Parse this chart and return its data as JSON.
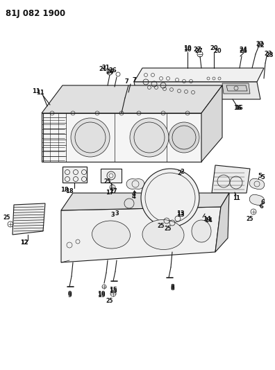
{
  "title": "81J 082 1900",
  "bg_color": "#ffffff",
  "line_color": "#1a1a1a",
  "label_color": "#111111",
  "figsize": [
    3.96,
    5.33
  ],
  "dpi": 100
}
